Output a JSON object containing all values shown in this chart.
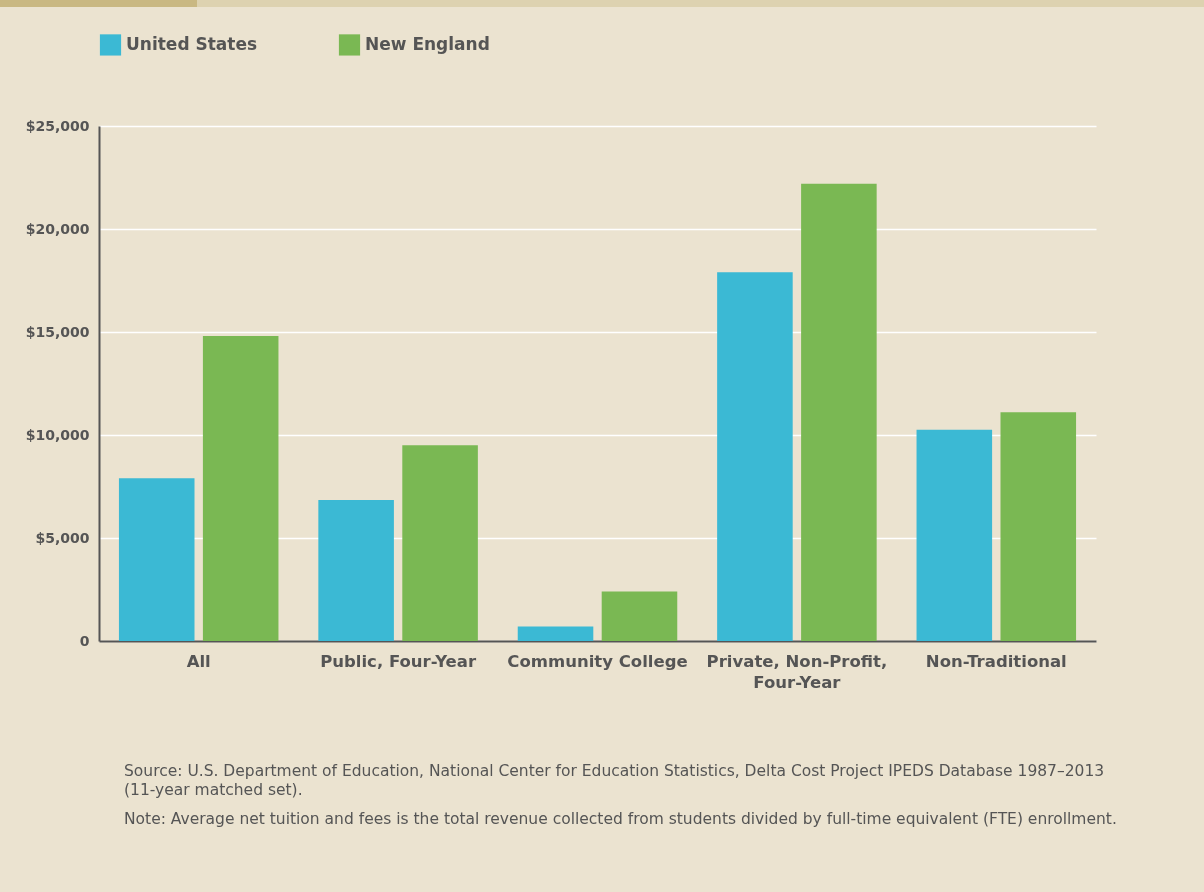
{
  "chart_data": {
    "type": "bar",
    "categories": [
      "All",
      "Public, Four-Year",
      "Community College",
      "Private, Non-Profit, Four-Year",
      "Non-Traditional"
    ],
    "series": [
      {
        "name": "United States",
        "color": "#3bb9d4",
        "values": [
          7900,
          6850,
          700,
          17900,
          10250
        ]
      },
      {
        "name": "New England",
        "color": "#7ab853",
        "values": [
          14800,
          9500,
          2400,
          22200,
          11100
        ]
      }
    ],
    "ylim": [
      0,
      25000
    ],
    "yticks": [
      0,
      {
        "value": 5000,
        "label": "$5,000"
      },
      {
        "value": 10000,
        "label": "$10,000"
      },
      {
        "value": 15000,
        "label": "$15,000"
      },
      {
        "value": 20000,
        "label": "$20,000"
      },
      {
        "value": 25000,
        "label": "$25,000"
      }
    ],
    "grid": "y",
    "legend": "top",
    "annotations": [
      "Source: U.S. Department of Education, National Center for Education Statistics, Delta Cost Project IPEDS Database 1987–2013 (11-year matched set).",
      "Note:  Average net tuition and fees is the total revenue collected from students divided by full-time equivalent (FTE) enrollment."
    ]
  }
}
